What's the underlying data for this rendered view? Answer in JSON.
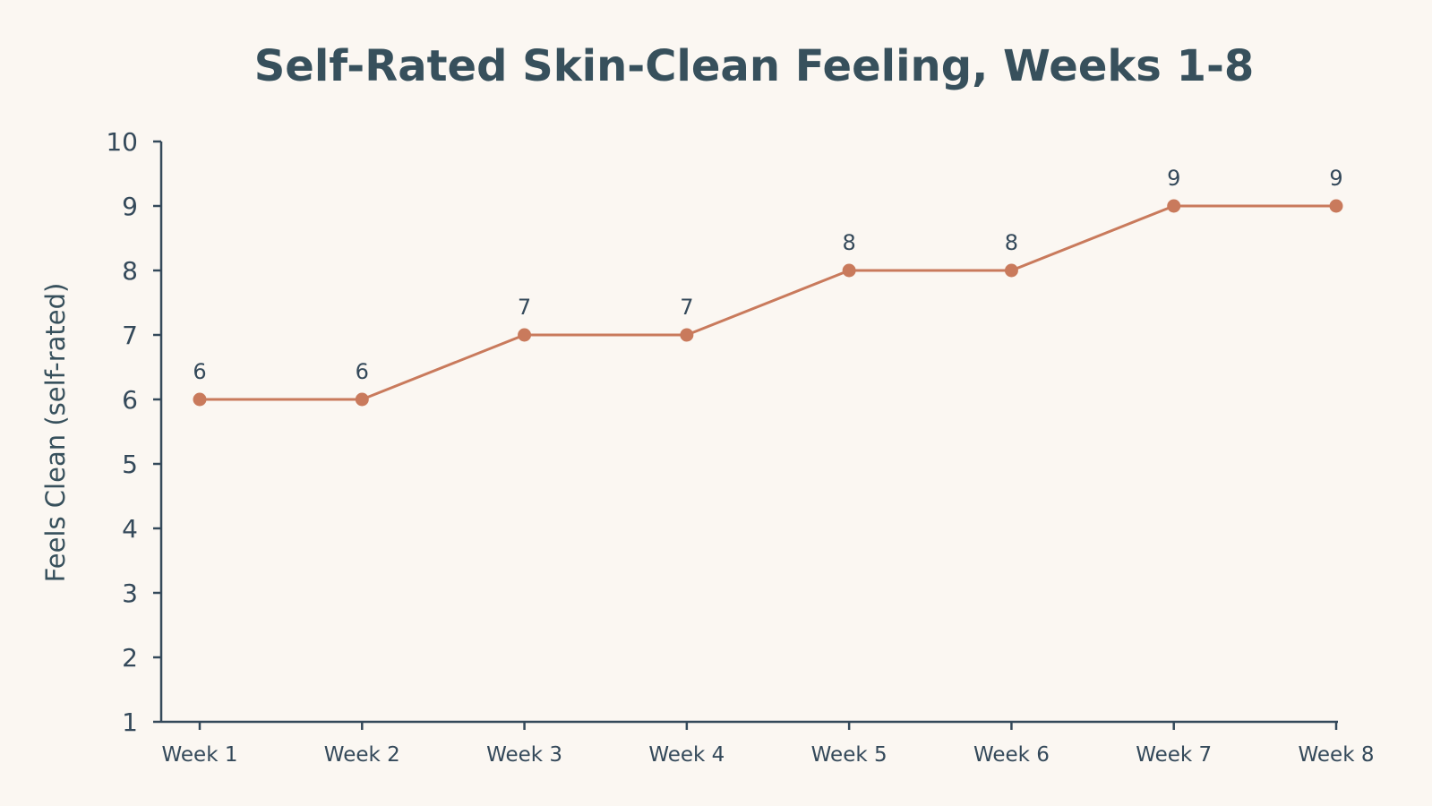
{
  "colors": {
    "background": "#fbf7f2",
    "series_line": "#c97a5c",
    "axis": "#34495a",
    "title": "#37505c"
  },
  "chart_data": {
    "type": "line",
    "title": "Self-Rated Skin-Clean Feeling, Weeks 1-8",
    "xlabel": "",
    "ylabel": "Feels Clean (self-rated)",
    "categories": [
      "Week 1",
      "Week 2",
      "Week 3",
      "Week 4",
      "Week 5",
      "Week 6",
      "Week 7",
      "Week 8"
    ],
    "series": [
      {
        "values": [
          6,
          6,
          7,
          7,
          8,
          8,
          9,
          9
        ]
      }
    ],
    "ylim": [
      1,
      10
    ],
    "yticks": [
      1,
      2,
      3,
      4,
      5,
      6,
      7,
      8,
      9,
      10
    ],
    "grid": false,
    "legend": "none",
    "data_labels": true
  }
}
